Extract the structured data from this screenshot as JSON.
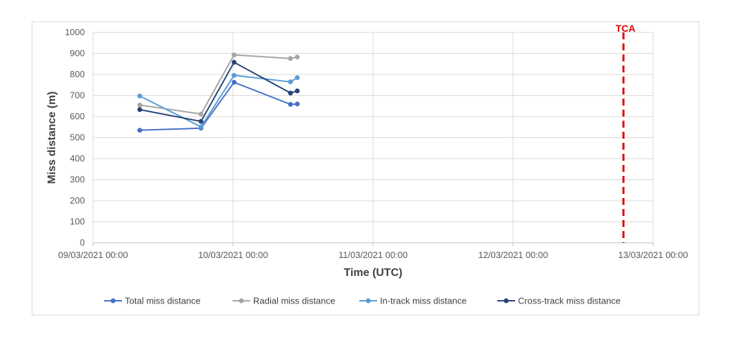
{
  "chart_data": {
    "type": "line",
    "title": "",
    "xlabel": "Time (UTC)",
    "ylabel": "Miss distance (m)",
    "ylim": [
      0,
      1000
    ],
    "yticks": [
      0,
      100,
      200,
      300,
      400,
      500,
      600,
      700,
      800,
      900,
      1000
    ],
    "xlim": [
      "2021-03-09T00:00",
      "2021-03-13T00:00"
    ],
    "xticks": [
      "09/03/2021 00:00",
      "10/03/2021 00:00",
      "11/03/2021 00:00",
      "12/03/2021 00:00",
      "13/03/2021 00:00"
    ],
    "grid": true,
    "legend_position": "bottom",
    "annotation": {
      "label": "TCA",
      "x": "2021-03-12T18:55",
      "color": "#e00000",
      "style": "dashed vertical line"
    },
    "series": [
      {
        "name": "Total miss distance",
        "color": "#4472c4",
        "points": [
          {
            "x": "2021-03-09T08:00",
            "y": 535
          },
          {
            "x": "2021-03-09T18:30",
            "y": 545
          },
          {
            "x": "2021-03-10T00:10",
            "y": 763
          },
          {
            "x": "2021-03-10T09:50",
            "y": 658
          },
          {
            "x": "2021-03-10T11:00",
            "y": 660
          }
        ]
      },
      {
        "name": "Radial miss distance",
        "color": "#a5a5a5",
        "points": [
          {
            "x": "2021-03-09T08:00",
            "y": 655
          },
          {
            "x": "2021-03-09T18:30",
            "y": 612
          },
          {
            "x": "2021-03-10T00:10",
            "y": 893
          },
          {
            "x": "2021-03-10T09:50",
            "y": 876
          },
          {
            "x": "2021-03-10T11:00",
            "y": 883
          }
        ]
      },
      {
        "name": "In-track miss distance",
        "color": "#5b9bd5",
        "points": [
          {
            "x": "2021-03-09T08:00",
            "y": 698
          },
          {
            "x": "2021-03-09T18:30",
            "y": 551
          },
          {
            "x": "2021-03-10T00:10",
            "y": 796
          },
          {
            "x": "2021-03-10T09:50",
            "y": 765
          },
          {
            "x": "2021-03-10T11:00",
            "y": 785
          }
        ]
      },
      {
        "name": "Cross-track miss distance",
        "color": "#264478",
        "points": [
          {
            "x": "2021-03-09T08:00",
            "y": 633
          },
          {
            "x": "2021-03-09T18:30",
            "y": 577
          },
          {
            "x": "2021-03-10T00:10",
            "y": 858
          },
          {
            "x": "2021-03-10T09:50",
            "y": 712
          },
          {
            "x": "2021-03-10T11:00",
            "y": 722
          }
        ]
      }
    ]
  }
}
